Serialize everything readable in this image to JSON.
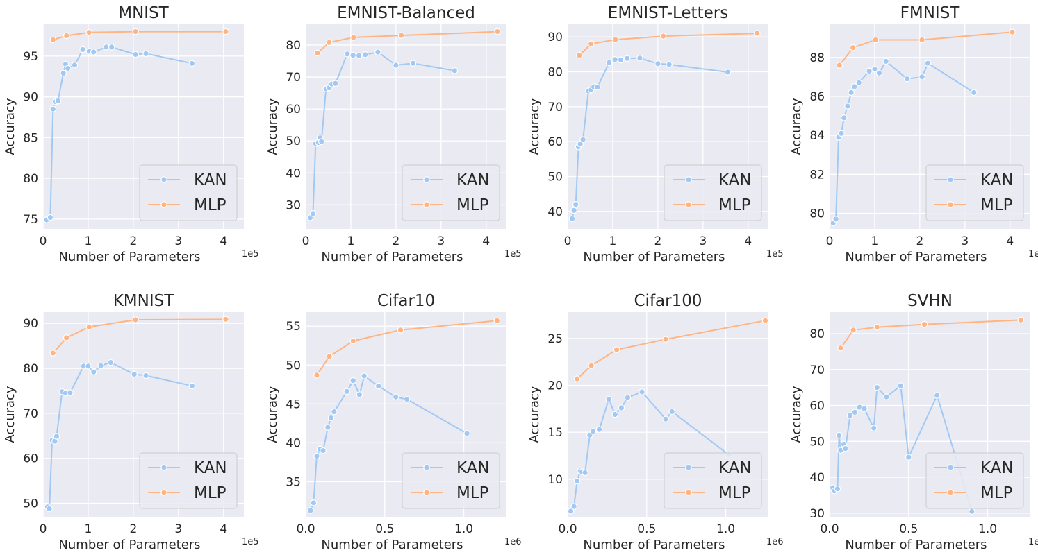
{
  "colors": {
    "kan": "#a1c9f4",
    "mlp": "#ffb482"
  },
  "legend": [
    "KAN",
    "MLP"
  ],
  "chart_data": [
    {
      "type": "line",
      "title": "MNIST",
      "xlabel": "Number of Parameters",
      "ylabel": "Accuracy",
      "x_offset_label": "1e5",
      "xlim": [
        0,
        4.45
      ],
      "ylim": [
        73.8,
        98.9
      ],
      "xticks": [
        0,
        1,
        2,
        3,
        4
      ],
      "yticks": [
        75,
        80,
        85,
        90,
        95
      ],
      "legend_position": "lower-right",
      "series": [
        {
          "name": "KAN",
          "x": [
            0.08,
            0.16,
            0.22,
            0.28,
            0.33,
            0.45,
            0.5,
            0.55,
            0.7,
            0.88,
            1.02,
            1.12,
            1.4,
            1.52,
            2.05,
            2.28,
            3.3
          ],
          "y": [
            74.9,
            75.2,
            88.5,
            89.4,
            89.5,
            92.9,
            94.0,
            93.5,
            93.9,
            95.8,
            95.6,
            95.5,
            96.1,
            96.1,
            95.2,
            95.3,
            94.1
          ]
        },
        {
          "name": "MLP",
          "x": [
            0.22,
            0.52,
            1.02,
            2.05,
            4.05
          ],
          "y": [
            97.0,
            97.5,
            97.9,
            98.0,
            98.0
          ]
        }
      ]
    },
    {
      "type": "line",
      "title": "EMNIST-Balanced",
      "xlabel": "Number of Parameters",
      "ylabel": "Accuracy",
      "x_offset_label": "1e5",
      "xlim": [
        0,
        4.45
      ],
      "ylim": [
        22.5,
        86.5
      ],
      "xticks": [
        0,
        1,
        2,
        3,
        4
      ],
      "yticks": [
        30,
        40,
        50,
        60,
        70,
        80
      ],
      "legend_position": "lower-right",
      "series": [
        {
          "name": "KAN",
          "x": [
            0.1,
            0.16,
            0.22,
            0.28,
            0.32,
            0.35,
            0.45,
            0.52,
            0.58,
            0.66,
            0.92,
            1.05,
            1.18,
            1.32,
            1.6,
            2.0,
            2.38,
            3.3
          ],
          "y": [
            26.0,
            27.3,
            49.2,
            49.5,
            51.0,
            49.8,
            66.3,
            66.6,
            67.8,
            68.0,
            77.2,
            76.8,
            76.7,
            77.0,
            77.8,
            73.7,
            74.3,
            72.0
          ]
        },
        {
          "name": "MLP",
          "x": [
            0.26,
            0.52,
            1.06,
            2.12,
            4.25
          ],
          "y": [
            77.5,
            80.8,
            82.4,
            83.0,
            84.2
          ]
        }
      ]
    },
    {
      "type": "line",
      "title": "EMNIST-Letters",
      "xlabel": "Number of Parameters",
      "ylabel": "Accuracy",
      "x_offset_label": "1e5",
      "xlim": [
        0,
        4.45
      ],
      "ylim": [
        35,
        93.6
      ],
      "xticks": [
        0,
        1,
        2,
        3,
        4
      ],
      "yticks": [
        40,
        50,
        60,
        70,
        80,
        90
      ],
      "legend_position": "lower-right",
      "series": [
        {
          "name": "KAN",
          "x": [
            0.1,
            0.14,
            0.18,
            0.24,
            0.28,
            0.34,
            0.46,
            0.52,
            0.58,
            0.66,
            0.92,
            1.05,
            1.18,
            1.32,
            1.6,
            2.0,
            2.25,
            3.55
          ],
          "y": [
            37.9,
            40.3,
            42.0,
            58.5,
            59.3,
            60.6,
            74.5,
            74.8,
            75.7,
            75.6,
            82.6,
            83.5,
            83.4,
            83.8,
            83.9,
            82.3,
            82.1,
            79.9
          ]
        },
        {
          "name": "MLP",
          "x": [
            0.26,
            0.52,
            1.06,
            2.12,
            4.2
          ],
          "y": [
            84.7,
            88.0,
            89.2,
            90.2,
            91.0
          ]
        }
      ]
    },
    {
      "type": "line",
      "title": "FMNIST",
      "xlabel": "Number of Parameters",
      "ylabel": "Accuracy",
      "x_offset_label": "1e5",
      "xlim": [
        0,
        4.45
      ],
      "ylim": [
        79.2,
        89.7
      ],
      "xticks": [
        0,
        1,
        2,
        3,
        4
      ],
      "yticks": [
        80,
        82,
        84,
        86,
        88
      ],
      "legend_position": "lower-right",
      "series": [
        {
          "name": "KAN",
          "x": [
            0.08,
            0.14,
            0.2,
            0.26,
            0.32,
            0.4,
            0.48,
            0.55,
            0.65,
            0.88,
            1.0,
            1.1,
            1.25,
            1.72,
            2.05,
            2.18,
            3.2
          ],
          "y": [
            79.5,
            79.7,
            83.9,
            84.1,
            84.9,
            85.5,
            86.2,
            86.5,
            86.7,
            87.3,
            87.4,
            87.2,
            87.8,
            86.9,
            87.0,
            87.7,
            86.2
          ]
        },
        {
          "name": "MLP",
          "x": [
            0.22,
            0.52,
            1.02,
            2.05,
            4.05
          ],
          "y": [
            87.6,
            88.5,
            88.9,
            88.9,
            89.3
          ]
        }
      ]
    },
    {
      "type": "line",
      "title": "KMNIST",
      "xlabel": "Number of Parameters",
      "ylabel": "Accuracy",
      "x_offset_label": "1e5",
      "xlim": [
        0,
        4.45
      ],
      "ylim": [
        47,
        92.5
      ],
      "xticks": [
        0,
        1,
        2,
        3,
        4
      ],
      "yticks": [
        50,
        60,
        70,
        80,
        90
      ],
      "legend_position": "lower-right",
      "series": [
        {
          "name": "KAN",
          "x": [
            0.1,
            0.14,
            0.2,
            0.26,
            0.3,
            0.42,
            0.5,
            0.6,
            0.9,
            1.0,
            1.12,
            1.28,
            1.5,
            2.02,
            2.28,
            3.3
          ],
          "y": [
            49.2,
            48.8,
            64.0,
            63.8,
            64.9,
            74.8,
            74.5,
            74.6,
            80.5,
            80.5,
            79.2,
            80.6,
            81.3,
            78.7,
            78.4,
            76.1
          ]
        },
        {
          "name": "MLP",
          "x": [
            0.22,
            0.52,
            1.02,
            2.05,
            4.05
          ],
          "y": [
            83.4,
            86.8,
            89.2,
            90.8,
            90.9
          ]
        }
      ]
    },
    {
      "type": "line",
      "title": "Cifar10",
      "xlabel": "Number of Parameters",
      "ylabel": "Accuracy",
      "x_offset_label": "1e6",
      "xlim": [
        0,
        1.27
      ],
      "ylim": [
        30.5,
        56.8
      ],
      "xticks": [
        0.0,
        0.5,
        1.0
      ],
      "yticks": [
        35,
        40,
        45,
        50,
        55
      ],
      "legend_position": "lower-right",
      "series": [
        {
          "name": "KAN",
          "x": [
            0.03,
            0.05,
            0.07,
            0.09,
            0.11,
            0.14,
            0.16,
            0.18,
            0.26,
            0.3,
            0.34,
            0.37,
            0.46,
            0.57,
            0.64,
            1.02
          ],
          "y": [
            31.3,
            32.3,
            38.3,
            39.2,
            39.0,
            42.0,
            43.2,
            44.0,
            46.6,
            48.0,
            46.2,
            48.6,
            47.3,
            45.9,
            45.6,
            41.2
          ]
        },
        {
          "name": "MLP",
          "x": [
            0.07,
            0.15,
            0.3,
            0.6,
            1.21
          ],
          "y": [
            48.7,
            51.1,
            53.1,
            54.5,
            55.7
          ]
        }
      ]
    },
    {
      "type": "line",
      "title": "Cifar100",
      "xlabel": "Number of Parameters",
      "ylabel": "Accuracy",
      "x_offset_label": "1e6",
      "xlim": [
        0,
        1.27
      ],
      "ylim": [
        6,
        27.8
      ],
      "xticks": [
        0.0,
        0.5,
        1.0
      ],
      "yticks": [
        10,
        15,
        20,
        25
      ],
      "legend_position": "lower-right",
      "series": [
        {
          "name": "KAN",
          "x": [
            0.02,
            0.04,
            0.06,
            0.08,
            0.09,
            0.11,
            0.14,
            0.16,
            0.2,
            0.26,
            0.3,
            0.34,
            0.38,
            0.47,
            0.62,
            0.66,
            1.02
          ],
          "y": [
            6.6,
            7.1,
            9.8,
            10.9,
            10.8,
            10.7,
            14.7,
            15.1,
            15.3,
            18.5,
            16.9,
            17.6,
            18.7,
            19.3,
            16.4,
            17.2,
            12.6
          ]
        },
        {
          "name": "MLP",
          "x": [
            0.06,
            0.15,
            0.31,
            0.62,
            1.25
          ],
          "y": [
            20.7,
            22.1,
            23.8,
            24.9,
            26.9
          ]
        }
      ]
    },
    {
      "type": "line",
      "title": "SVHN",
      "xlabel": "Number of Parameters",
      "ylabel": "Accuracy",
      "x_offset_label": "1e6",
      "xlim": [
        0,
        1.27
      ],
      "ylim": [
        29,
        86
      ],
      "xticks": [
        0.0,
        0.5,
        1.0
      ],
      "yticks": [
        30,
        40,
        50,
        60,
        70,
        80
      ],
      "legend_position": "lower-right",
      "series": [
        {
          "name": "KAN",
          "x": [
            0.02,
            0.03,
            0.05,
            0.06,
            0.07,
            0.09,
            0.1,
            0.13,
            0.16,
            0.19,
            0.22,
            0.28,
            0.3,
            0.36,
            0.45,
            0.5,
            0.68,
            0.9
          ],
          "y": [
            37.1,
            36.2,
            36.8,
            51.7,
            47.5,
            49.2,
            48.0,
            57.2,
            58.1,
            59.5,
            59.1,
            53.7,
            65.0,
            62.4,
            65.5,
            45.6,
            62.8,
            30.5
          ]
        },
        {
          "name": "MLP",
          "x": [
            0.07,
            0.15,
            0.3,
            0.6,
            1.21
          ],
          "y": [
            76.0,
            81.0,
            81.8,
            82.6,
            83.8
          ]
        }
      ]
    }
  ]
}
